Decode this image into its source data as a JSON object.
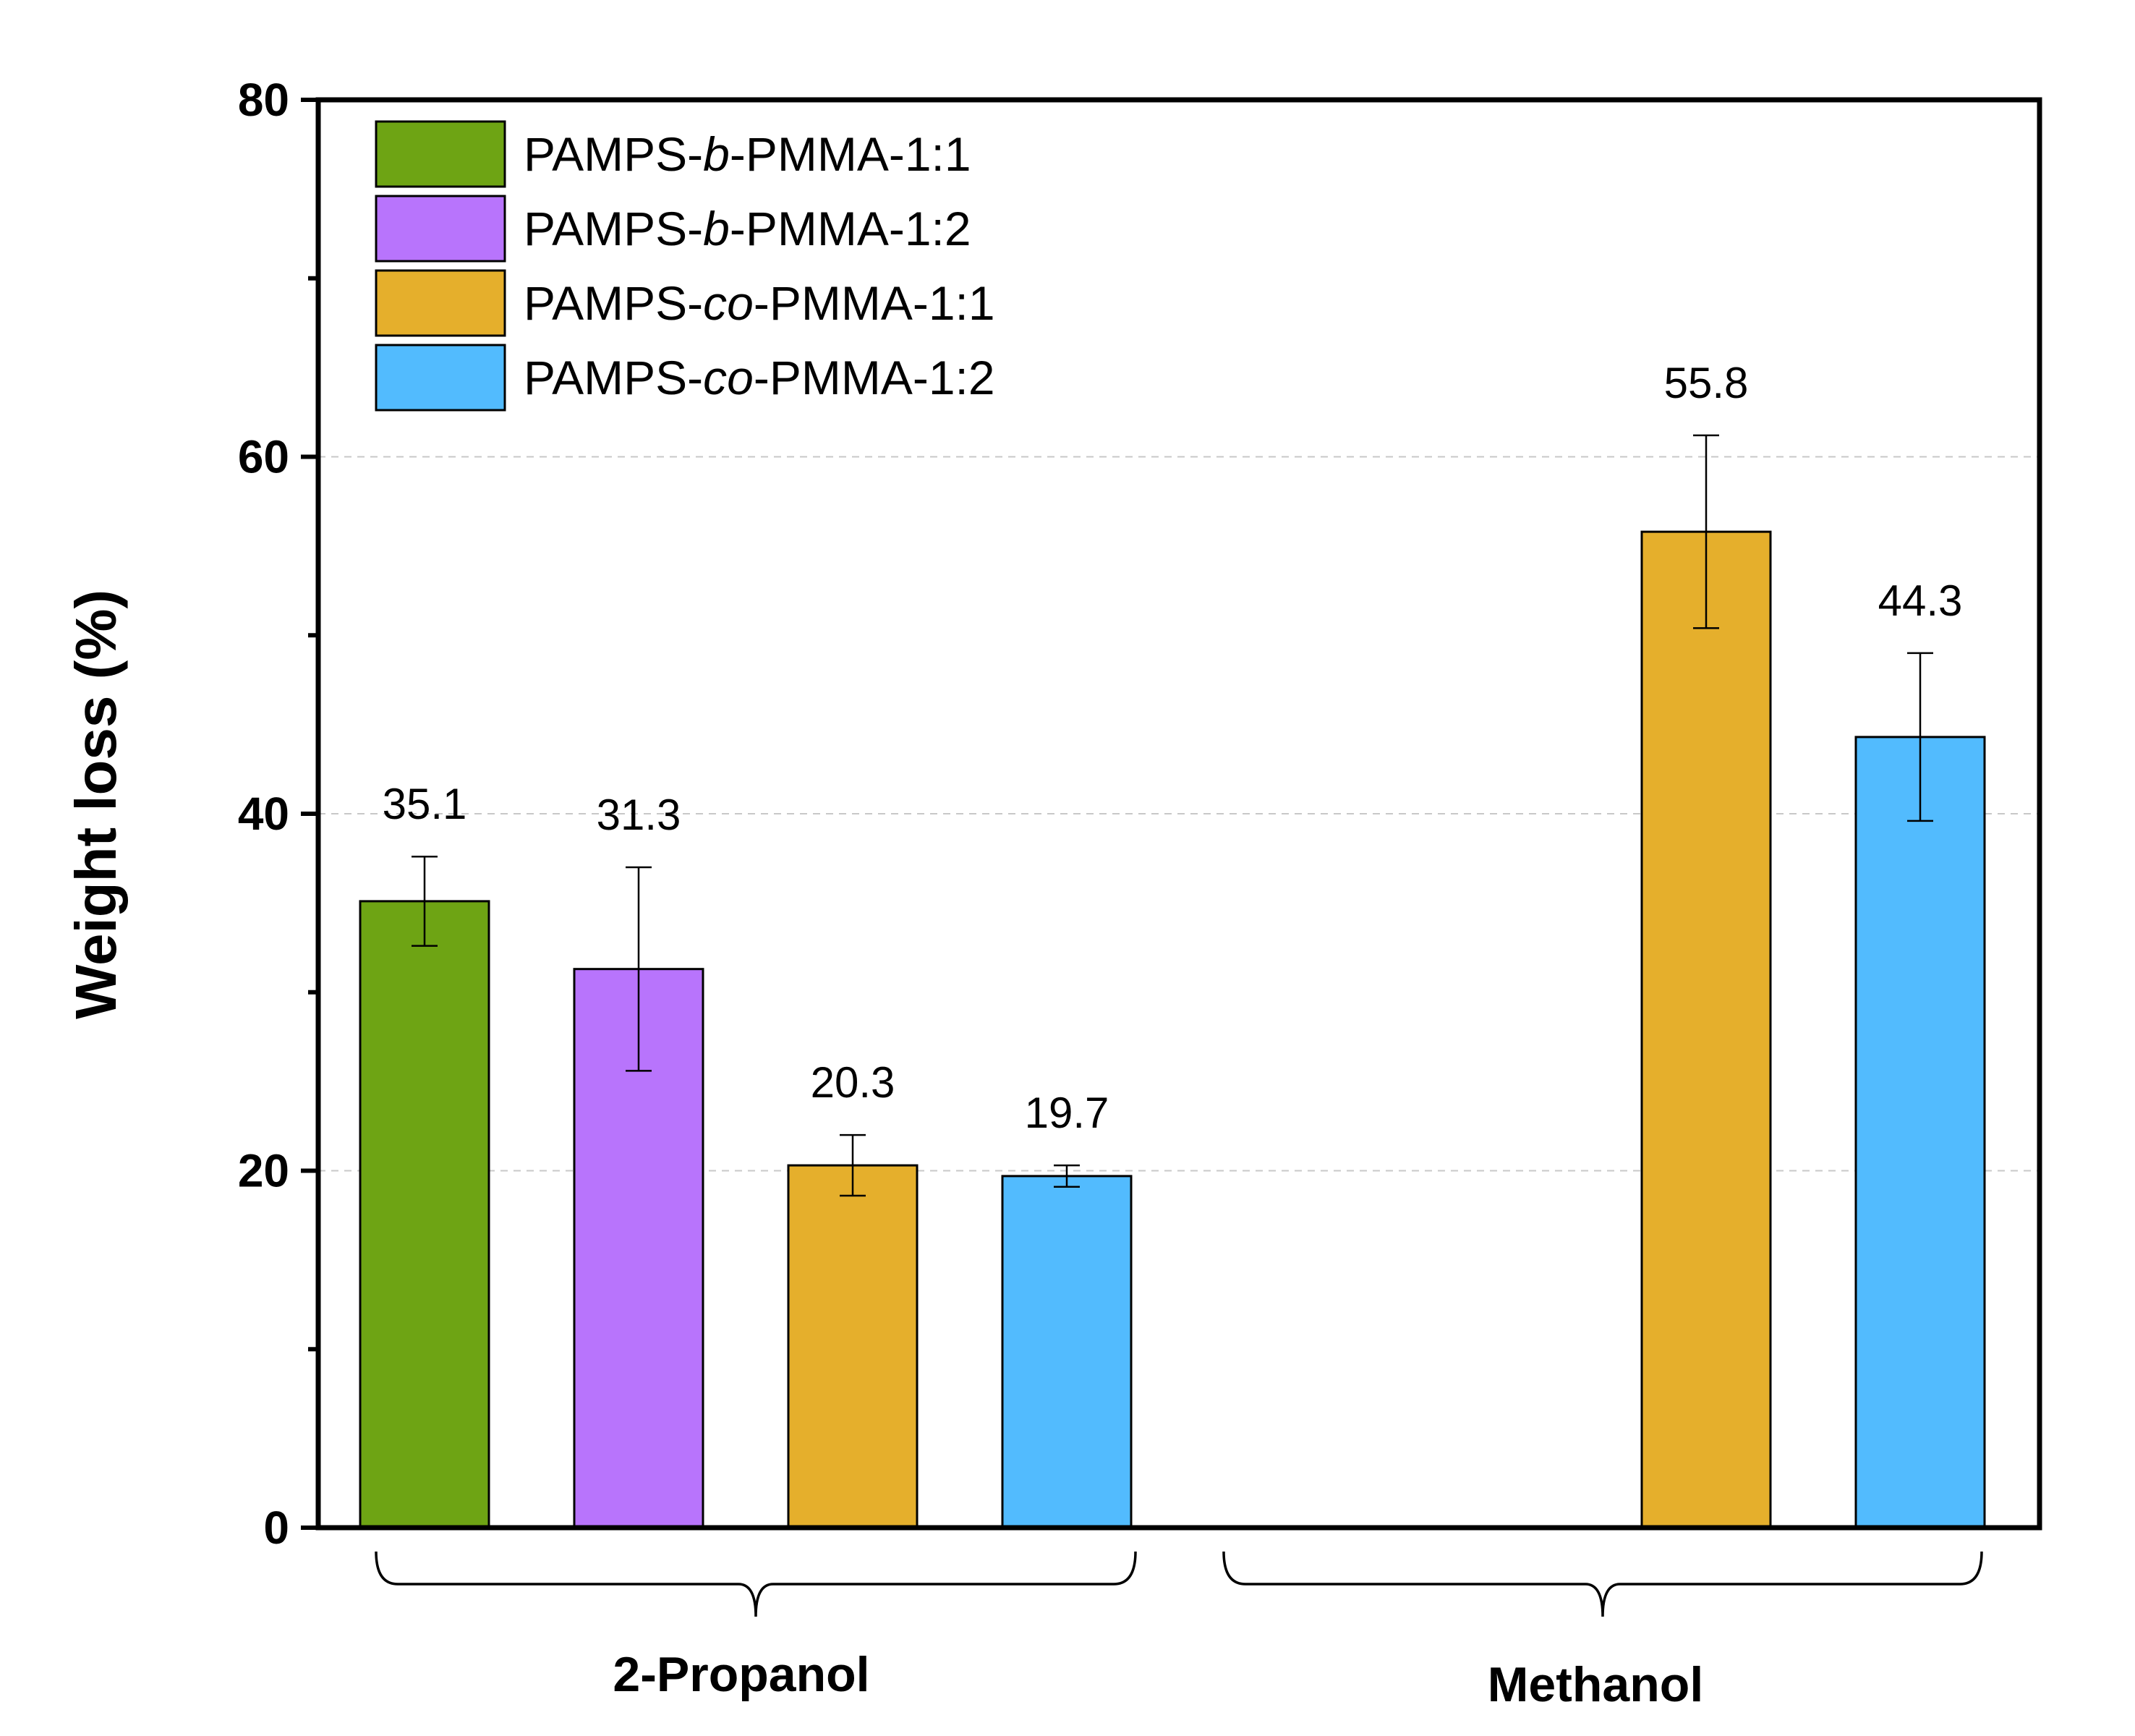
{
  "chart_data": {
    "type": "bar",
    "ylabel": "Weight loss (%)",
    "xlabel": "",
    "ylim": [
      0,
      80
    ],
    "yticks": [
      0,
      20,
      40,
      60,
      80
    ],
    "grid": "horizontal dashed",
    "legend_position": "top-left",
    "categories": [
      "2-Propanol",
      "Methanol"
    ],
    "series": [
      {
        "name": "PAMPS-b-PMMA-1:1",
        "name_parts": [
          {
            "text": "PAMPS-"
          },
          {
            "text": "b",
            "italic": true
          },
          {
            "text": "-PMMA-1:1"
          }
        ],
        "color": "#6ea414",
        "values": [
          35.1,
          null
        ],
        "errors": [
          2.5,
          null
        ],
        "labels": [
          "35.1",
          ""
        ]
      },
      {
        "name": "PAMPS-b-PMMA-1:2",
        "name_parts": [
          {
            "text": "PAMPS-"
          },
          {
            "text": "b",
            "italic": true
          },
          {
            "text": "-PMMA-1:2"
          }
        ],
        "color": "#b874fc",
        "values": [
          31.3,
          null
        ],
        "errors": [
          5.7,
          null
        ],
        "labels": [
          "31.3",
          ""
        ]
      },
      {
        "name": "PAMPS-co-PMMA-1:1",
        "name_parts": [
          {
            "text": "PAMPS-"
          },
          {
            "text": "co",
            "italic": true
          },
          {
            "text": "-PMMA-1:1"
          }
        ],
        "color": "#e5af2c",
        "values": [
          20.3,
          55.8
        ],
        "errors": [
          1.7,
          5.4
        ],
        "labels": [
          "20.3",
          "55.8"
        ]
      },
      {
        "name": "PAMPS-co-PMMA-1:2",
        "name_parts": [
          {
            "text": "PAMPS-"
          },
          {
            "text": "co",
            "italic": true
          },
          {
            "text": "-PMMA-1:2"
          }
        ],
        "color": "#52bbfe",
        "values": [
          19.7,
          44.3
        ],
        "errors": [
          0.6,
          4.7
        ],
        "labels": [
          "19.7",
          "44.3"
        ]
      }
    ]
  }
}
